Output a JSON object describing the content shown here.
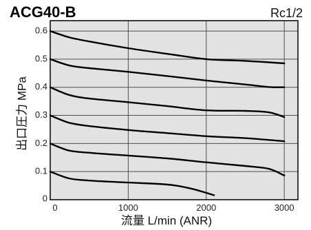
{
  "chart_data": {
    "type": "line",
    "title": "ACG40-B",
    "subtitle": "Rc1/2",
    "xlabel": "流量 L/min (ANR)",
    "ylabel": "出口圧力 MPa",
    "xlim": [
      0,
      3175
    ],
    "ylim": [
      0,
      0.637
    ],
    "xticks": [
      "0",
      "1000",
      "2000",
      "3000"
    ],
    "yticks": [
      "0",
      "0.1",
      "0.2",
      "0.3",
      "0.4",
      "0.5",
      "0.6"
    ],
    "grid": true,
    "series": [
      {
        "x": [
          0,
          240,
          500,
          1000,
          1500,
          2000,
          2500,
          3000
        ],
        "y": [
          0.6,
          0.578,
          0.563,
          0.539,
          0.519,
          0.5,
          0.494,
          0.485
        ]
      },
      {
        "x": [
          0,
          240,
          500,
          1000,
          1500,
          2000,
          2500,
          2800,
          3000
        ],
        "y": [
          0.5,
          0.478,
          0.468,
          0.455,
          0.44,
          0.424,
          0.41,
          0.401,
          0.4
        ]
      },
      {
        "x": [
          0,
          240,
          500,
          1000,
          1500,
          2000,
          2500,
          2800,
          3000
        ],
        "y": [
          0.4,
          0.373,
          0.36,
          0.347,
          0.333,
          0.318,
          0.316,
          0.311,
          0.294
        ]
      },
      {
        "x": [
          0,
          240,
          500,
          1000,
          1500,
          2000,
          2500,
          3000
        ],
        "y": [
          0.3,
          0.274,
          0.262,
          0.248,
          0.237,
          0.226,
          0.219,
          0.208
        ]
      },
      {
        "x": [
          0,
          240,
          500,
          1000,
          1500,
          2000,
          2500,
          2800,
          3000
        ],
        "y": [
          0.2,
          0.175,
          0.167,
          0.157,
          0.147,
          0.133,
          0.12,
          0.11,
          0.086
        ]
      },
      {
        "x": [
          0,
          240,
          500,
          1000,
          1500,
          1800,
          2100
        ],
        "y": [
          0.1,
          0.076,
          0.068,
          0.061,
          0.054,
          0.04,
          0.016
        ]
      }
    ]
  },
  "colors": {
    "plot_background": "#e2e2e2",
    "grid": "#4d4d4d",
    "line": "#000000",
    "border": "#000000"
  }
}
